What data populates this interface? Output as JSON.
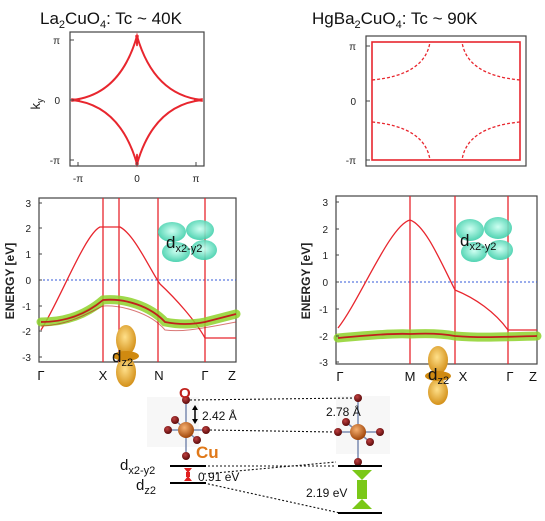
{
  "titles": {
    "left_formula": "La",
    "left_sub": "2",
    "left_formula2": "CuO",
    "left_sub2": "4",
    "left_rest": ": Tc ~ 40K",
    "right_formula": "HgBa",
    "right_sub": "2",
    "right_formula2": "CuO",
    "right_sub2": "4",
    "right_rest": ": Tc ~ 90K"
  },
  "fermi_surface": {
    "ylabel": "k",
    "ylabel_sub": "y",
    "left_yticks": [
      "π",
      "0",
      "-π"
    ],
    "left_xticks": [
      "-π",
      "0",
      "π"
    ],
    "right_yticks": [
      "π",
      "0",
      "-π"
    ]
  },
  "bands": {
    "ylabel": "ENERGY [eV]",
    "yticks": [
      "3",
      "2",
      "1",
      "0",
      "-1",
      "-2",
      "-3"
    ],
    "left_sym": [
      "Γ",
      "X",
      "N",
      "Γ",
      "Z"
    ],
    "right_sym": [
      "Γ",
      "M",
      "X",
      "Γ",
      "Z"
    ],
    "orbital_x": "d",
    "orbital_x_sub": "x2-y2",
    "orbital_x_sub_right": "x2-y2",
    "orbital_z": "d",
    "orbital_z_sub": "z2"
  },
  "structure": {
    "oxygen": "O",
    "copper": "Cu",
    "dist_left": "2.42 Å",
    "dist_right": "2.78 Å",
    "level_x": "d",
    "level_x_sub": "x2-y2",
    "level_z": "d",
    "level_z_sub": "z2",
    "gap_left": "0.91 eV",
    "gap_right": "2.19 eV"
  },
  "colors": {
    "band": "#e8262e",
    "highlight": "#8ed22a",
    "fermi": "#3358d8",
    "dx_lobe": "#47d6b0",
    "dz_lobe": "#e0a020",
    "arrow_left": "#e02020",
    "arrow_right": "#7ac818"
  }
}
